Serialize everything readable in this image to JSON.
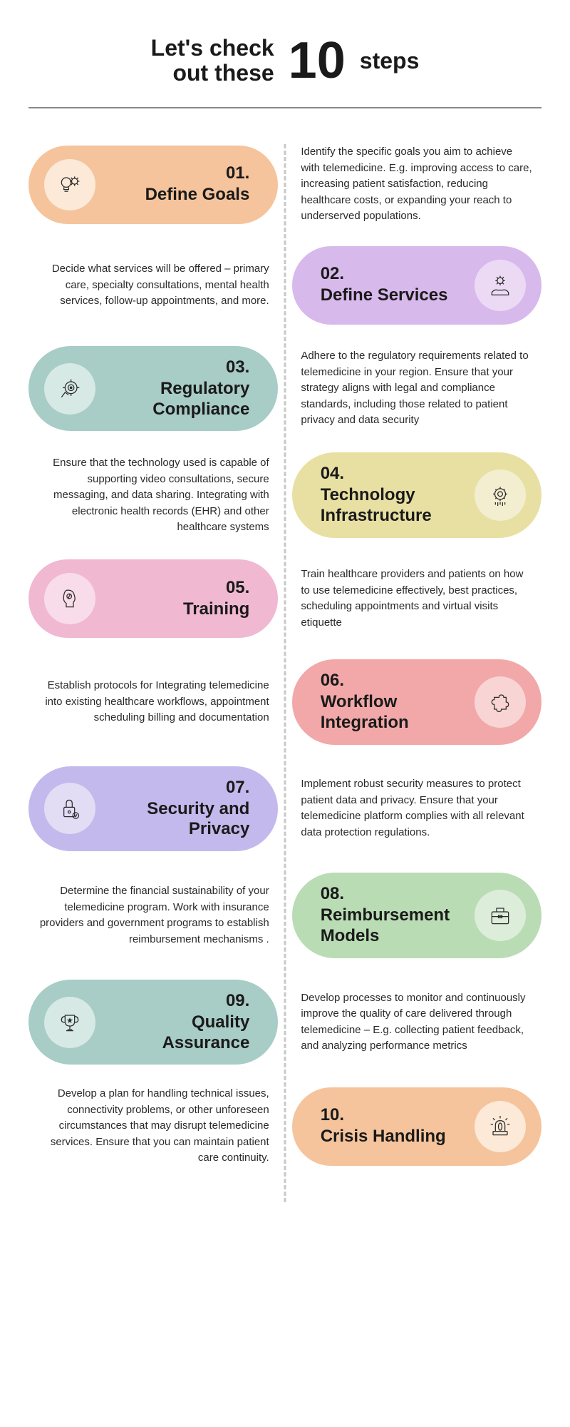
{
  "header": {
    "left_line1": "Let's check",
    "left_line2": "out these",
    "number": "10",
    "right": "steps"
  },
  "steps": [
    {
      "num": "01.",
      "title": "Define Goals",
      "desc": "Identify the specific goals you aim to achieve with telemedicine. E.g. improving access to care, increasing patient satisfaction, reducing healthcare costs, or expanding your reach to underserved populations.",
      "side": "left",
      "pill_color": "#f5c49c",
      "icon_bg": "#fce9d8",
      "icon": "lightbulb-gear"
    },
    {
      "num": "02.",
      "title": "Define Services",
      "desc": "Decide what services will be offered – primary care, specialty consultations, mental health services, follow-up appointments, and more.",
      "side": "right",
      "pill_color": "#d8b9ec",
      "icon_bg": "#ecdaf5",
      "icon": "hand-gear"
    },
    {
      "num": "03.",
      "title": "Regulatory Compliance",
      "desc": "Adhere to the regulatory requirements related to telemedicine in your region. Ensure that your strategy aligns with legal and compliance standards, including those related to patient privacy and data security",
      "side": "left",
      "pill_color": "#a8ccc6",
      "icon_bg": "#d6e9e5",
      "icon": "target"
    },
    {
      "num": "04.",
      "title": "Technology Infrastructure",
      "desc": "Ensure that the technology used is capable of supporting video consultations, secure messaging, and data sharing. Integrating with electronic health records (EHR) and other healthcare systems",
      "side": "right",
      "pill_color": "#e8e0a3",
      "icon_bg": "#f3eed0",
      "icon": "cpu-gear"
    },
    {
      "num": "05.",
      "title": "Training",
      "desc": "Train healthcare providers and patients on how to use telemedicine effectively, best practices, scheduling appointments and virtual visits etiquette",
      "side": "left",
      "pill_color": "#f1b8d1",
      "icon_bg": "#f9dce9",
      "icon": "head"
    },
    {
      "num": "06.",
      "title": "Workflow Integration",
      "desc": "Establish protocols for Integrating telemedicine into existing healthcare workflows, appointment scheduling billing and documentation",
      "side": "right",
      "pill_color": "#f2a8a8",
      "icon_bg": "#f9d4d4",
      "icon": "puzzle"
    },
    {
      "num": "07.",
      "title": "Security and Privacy",
      "desc": "Implement robust security measures to protect patient data and privacy. Ensure that your telemedicine platform complies with all relevant data protection regulations.",
      "side": "left",
      "pill_color": "#c4b9ec",
      "icon_bg": "#e2dcf5",
      "icon": "lock"
    },
    {
      "num": "08.",
      "title": "Reimbursement Models",
      "desc": "Determine the financial sustainability of your telemedicine program. Work with insurance providers and government programs to establish reimbursement mechanisms .",
      "side": "right",
      "pill_color": "#b9dcb4",
      "icon_bg": "#dceeda",
      "icon": "briefcase"
    },
    {
      "num": "09.",
      "title": "Quality Assurance",
      "desc": "Develop processes to monitor and continuously improve the quality of care delivered through telemedicine – E.g. collecting patient feedback, and analyzing performance metrics",
      "side": "left",
      "pill_color": "#a8ccc6",
      "icon_bg": "#d6e9e5",
      "icon": "trophy"
    },
    {
      "num": "10.",
      "title": "Crisis Handling",
      "desc": "Develop a plan for handling technical issues, connectivity problems, or other unforeseen circumstances that may disrupt telemedicine services. Ensure that you can maintain patient care continuity.",
      "side": "right",
      "pill_color": "#f5c49c",
      "icon_bg": "#fce9d8",
      "icon": "siren"
    }
  ]
}
